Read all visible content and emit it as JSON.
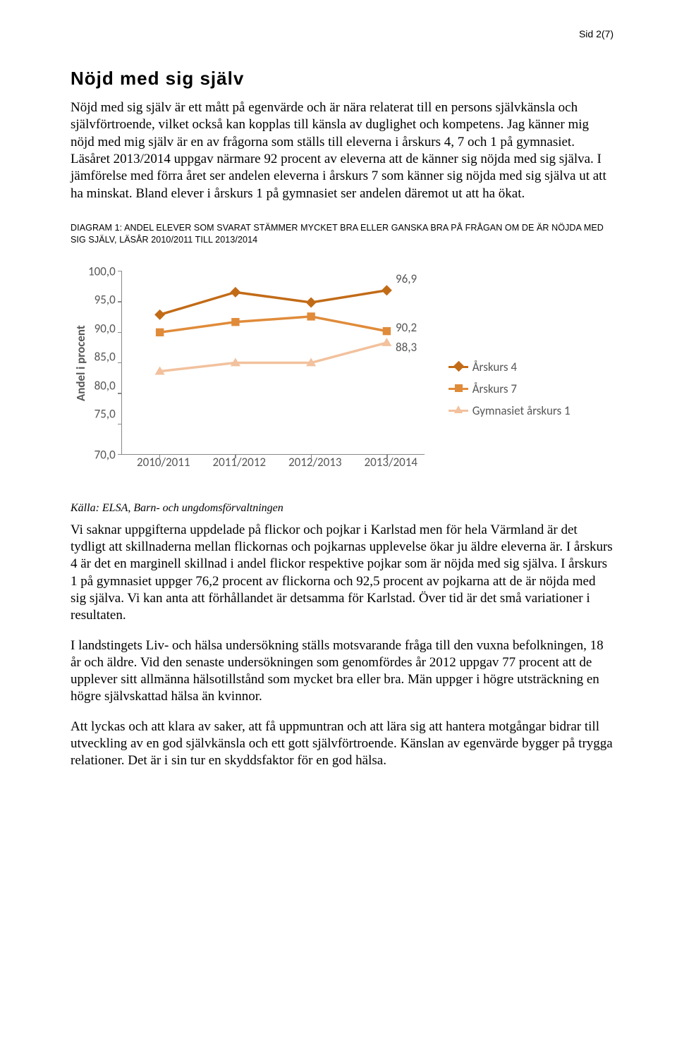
{
  "page_number": "Sid 2(7)",
  "heading": "Nöjd med sig själv",
  "intro_text": "Nöjd med sig själv är ett mått på egenvärde och är nära relaterat till en persons självkänsla och självförtroende, vilket också kan kopplas till känsla av duglighet och kompetens. Jag känner mig nöjd med mig själv är en av frågorna som ställs till eleverna i årskurs 4, 7 och 1 på gymnasiet. Läsåret 2013/2014 uppgav närmare 92 procent av eleverna att de känner sig nöjda med sig själva. I jämförelse med förra året ser andelen eleverna i årskurs 7 som känner sig nöjda med sig själva ut att ha minskat. Bland elever i årskurs 1 på gymnasiet ser andelen däremot ut att ha ökat.",
  "diagram_caption": "DIAGRAM 1: ANDEL ELEVER SOM SVARAT STÄMMER MYCKET BRA ELLER GANSKA BRA PÅ FRÅGAN OM DE ÄR NÖJDA MED SIG SJÄLV, LÄSÅR 2010/2011 TILL 2013/2014",
  "chart": {
    "type": "line",
    "y_label": "Andel i procent",
    "y_ticks": [
      "100,0",
      "95,0",
      "90,0",
      "85,0",
      "80,0",
      "75,0",
      "70,0"
    ],
    "y_min": 70,
    "y_max": 100,
    "x_labels": [
      "2010/2011",
      "2011/2012",
      "2012/2013",
      "2013/2014"
    ],
    "series": [
      {
        "name": "Årskurs 4",
        "color": "#c26b17",
        "marker": "diamond",
        "values": [
          92.9,
          96.6,
          94.9,
          96.9
        ],
        "end_label": "96,9"
      },
      {
        "name": "Årskurs 7",
        "color": "#e08b3a",
        "marker": "square",
        "values": [
          90.0,
          91.7,
          92.6,
          90.2
        ],
        "end_label": "90,2"
      },
      {
        "name": "Gymnasiet årskurs 1",
        "color": "#f2c19d",
        "marker": "triangle",
        "values": [
          83.6,
          85.0,
          85.0,
          88.3
        ],
        "end_label": "88,3"
      }
    ],
    "line_width": 3.5,
    "marker_size": 12,
    "label_fontsize": 17,
    "axis_color": "#888888",
    "text_color": "#575757",
    "background_color": "#ffffff"
  },
  "source_line": "Källa: ELSA, Barn- och ungdomsförvaltningen",
  "para2": "Vi saknar uppgifterna uppdelade på flickor och pojkar i Karlstad men för hela Värmland är det tydligt att skillnaderna mellan flickornas och pojkarnas upplevelse ökar ju äldre eleverna är. I årskurs 4 är det en marginell skillnad i andel flickor respektive pojkar som är nöjda med sig själva. I årskurs 1 på gymnasiet uppger 76,2 procent av flickorna och 92,5 procent av pojkarna att de är nöjda med sig själva. Vi kan anta att förhållandet är detsamma för Karlstad. Över tid är det små variationer i resultaten.",
  "para3": "I landstingets Liv- och hälsa undersökning ställs motsvarande fråga till den vuxna befolkningen, 18 år och äldre. Vid den senaste undersökningen som genomfördes år 2012 uppgav 77 procent att de upplever sitt allmänna hälsotillstånd som mycket bra eller bra. Män uppger i högre utsträckning en högre självskattad hälsa än kvinnor.",
  "para4": "Att lyckas och att klara av saker, att få uppmuntran och att lära sig att hantera motgångar bidrar till utveckling av en god självkänsla och ett gott självförtroende. Känslan av egenvärde bygger på trygga relationer. Det är i sin tur en skyddsfaktor för en god hälsa."
}
